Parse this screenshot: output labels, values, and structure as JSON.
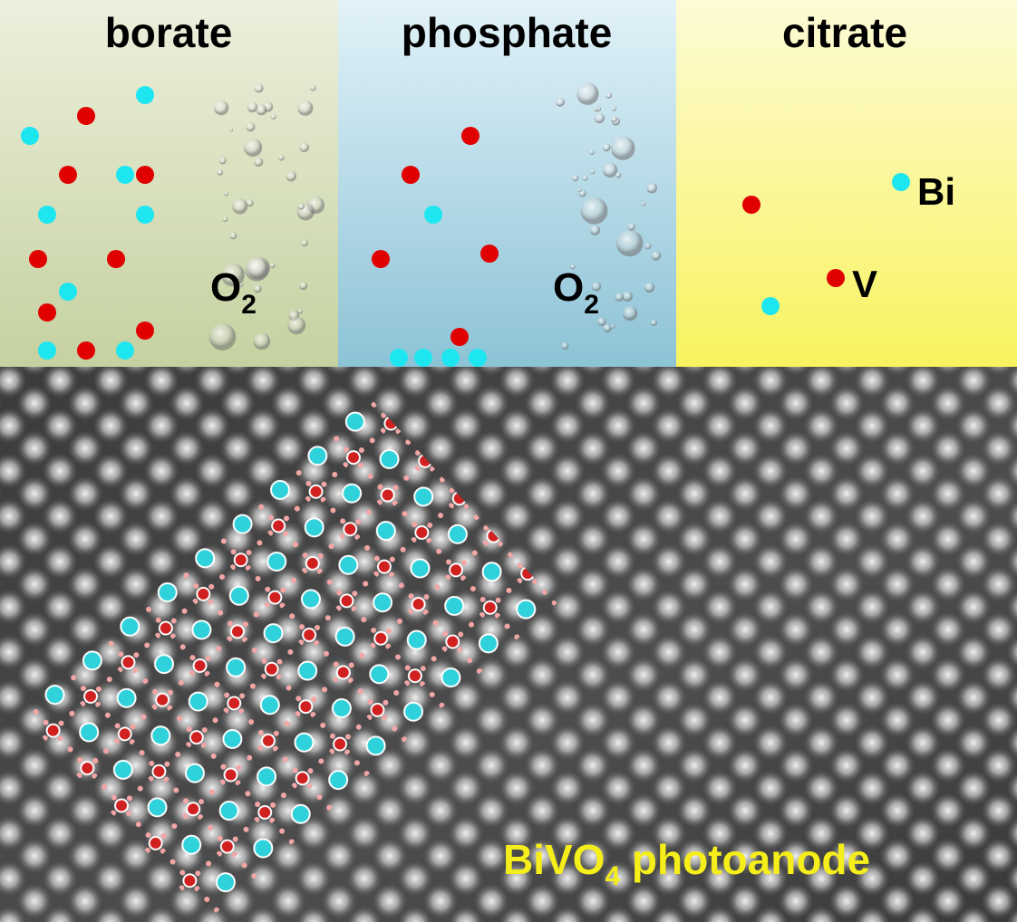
{
  "panels": [
    {
      "title": "borate",
      "gas": {
        "symbol": "O",
        "subscript": "2"
      }
    },
    {
      "title": "phosphate",
      "gas": {
        "symbol": "O",
        "subscript": "2"
      }
    },
    {
      "title": "citrate"
    }
  ],
  "legend": {
    "bi": "Bi",
    "v": "V"
  },
  "image_label": {
    "main": "BiVO",
    "subscript": "4",
    "rest": " photoanode"
  }
}
